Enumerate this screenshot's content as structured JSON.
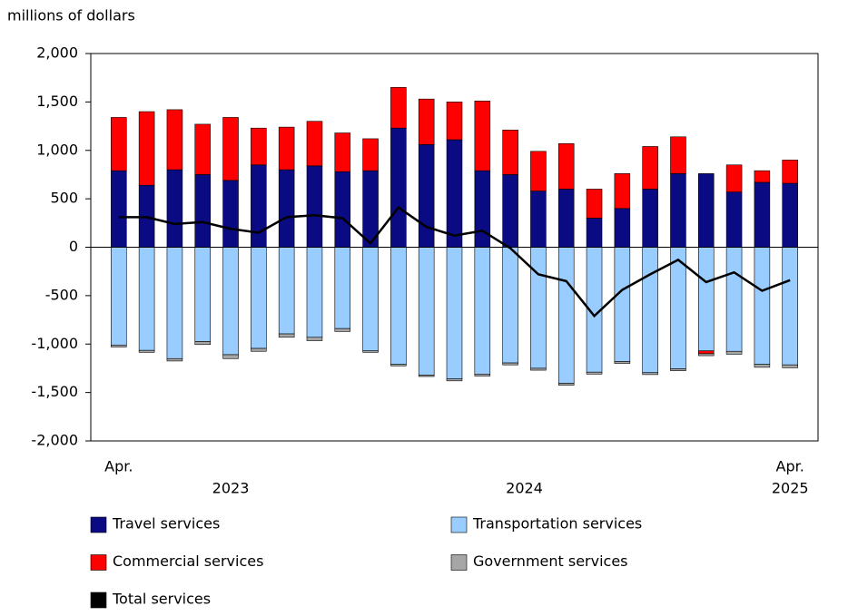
{
  "chart_data": {
    "type": "bar",
    "y_label": "millions of dollars",
    "categories": [
      "Apr.",
      null,
      null,
      null,
      null,
      null,
      null,
      null,
      null,
      null,
      null,
      null,
      null,
      null,
      null,
      null,
      null,
      null,
      null,
      null,
      null,
      null,
      null,
      null,
      "Apr."
    ],
    "years": [
      "2023",
      "2024",
      "2025"
    ],
    "ylim": [
      -2000,
      2000
    ],
    "yticks": [
      {
        "value": 2000,
        "label": "2,000"
      },
      {
        "value": 1500,
        "label": "1,500"
      },
      {
        "value": 1000,
        "label": "1,000"
      },
      500,
      0,
      -500,
      {
        "value": -1000,
        "label": "-1,000"
      },
      {
        "value": -1500,
        "label": "-1,500"
      },
      {
        "value": -2000,
        "label": "-2,000"
      }
    ],
    "series": [
      {
        "name": "Travel services",
        "color": "#0a0a82",
        "values": [
          790,
          640,
          800,
          750,
          690,
          850,
          800,
          840,
          780,
          790,
          1230,
          1060,
          1110,
          790,
          750,
          580,
          600,
          300,
          400,
          600,
          760,
          760,
          570,
          670,
          660
        ]
      },
      {
        "name": "Transportation services",
        "color": "#99ccff",
        "values": [
          -1010,
          -1065,
          -1150,
          -975,
          -1110,
          -1045,
          -895,
          -930,
          -840,
          -1070,
          -1210,
          -1320,
          -1360,
          -1310,
          -1195,
          -1250,
          -1405,
          -1290,
          -1180,
          -1295,
          -1255,
          -1070,
          -1075,
          -1210,
          -1215
        ]
      },
      {
        "name": "Commercial services",
        "color": "#ff0000",
        "values": [
          550,
          760,
          620,
          520,
          650,
          380,
          440,
          460,
          400,
          330,
          420,
          470,
          390,
          720,
          460,
          410,
          470,
          300,
          360,
          440,
          380,
          -30,
          280,
          120,
          240
        ]
      },
      {
        "name": "Government services",
        "color": "#a6a6a6",
        "values": [
          -20,
          -20,
          -25,
          -30,
          -40,
          -30,
          -35,
          -35,
          -30,
          -15,
          -15,
          -15,
          -20,
          -20,
          -20,
          -20,
          -20,
          -20,
          -20,
          -20,
          -20,
          -20,
          -30,
          -30,
          -30
        ]
      },
      {
        "name": "Total services",
        "color": "#000000",
        "type": "line",
        "values": [
          310,
          310,
          240,
          260,
          190,
          150,
          310,
          330,
          300,
          40,
          410,
          210,
          120,
          170,
          -10,
          -280,
          -350,
          -710,
          -440,
          -280,
          -130,
          -360,
          -260,
          -450,
          -340
        ]
      }
    ]
  }
}
